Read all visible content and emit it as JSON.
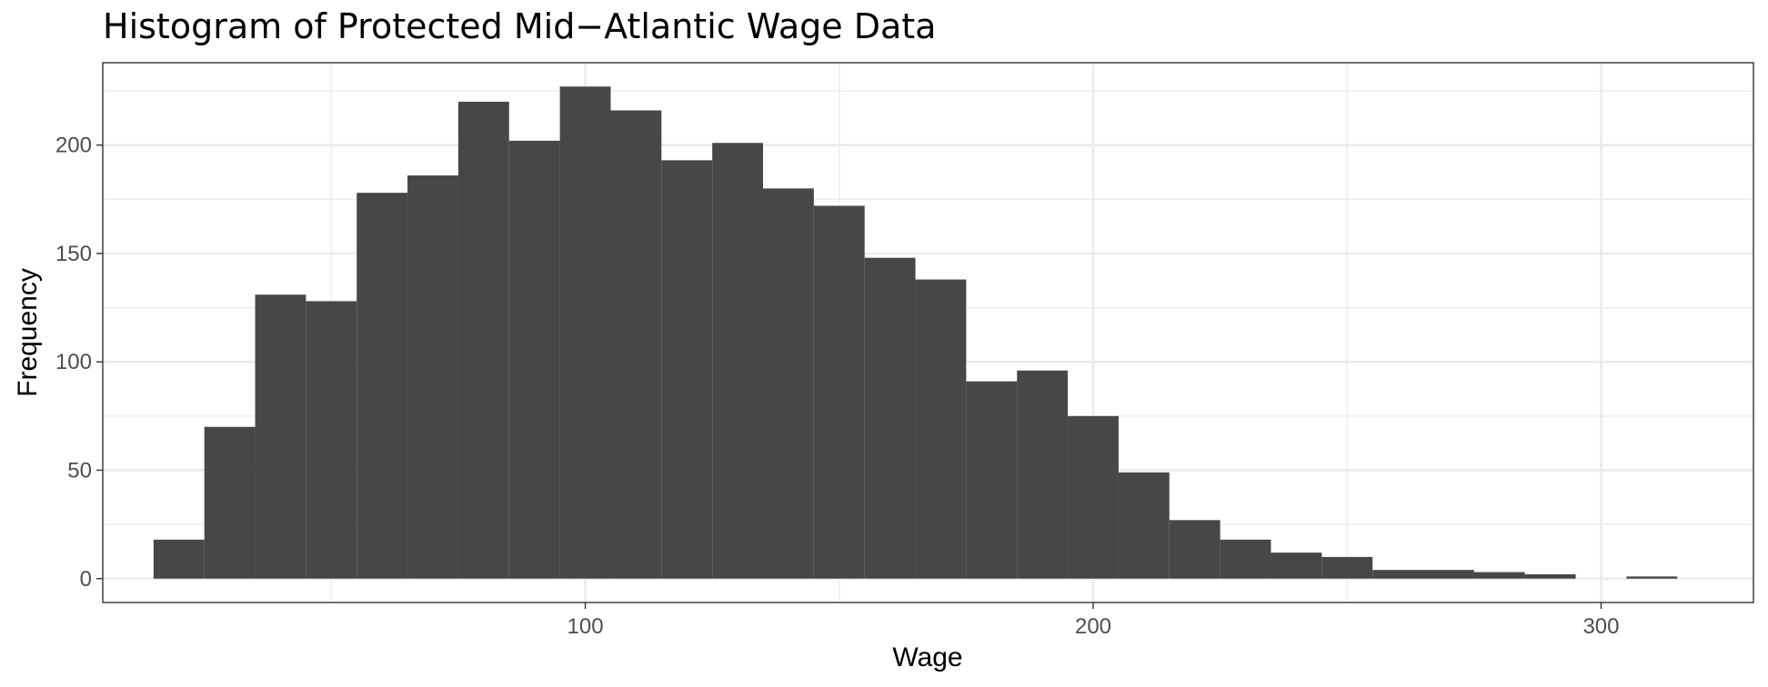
{
  "chart_data": {
    "type": "bar",
    "title": "Histogram of Protected Mid−Atlantic Wage Data",
    "xlabel": "Wage",
    "ylabel": "Frequency",
    "xlim": [
      5,
      330
    ],
    "ylim": [
      -11,
      238
    ],
    "x_major_ticks": [
      100,
      200,
      300
    ],
    "x_minor_ticks": [
      50,
      150,
      250
    ],
    "x_tick_labels": [
      "100",
      "200",
      "300"
    ],
    "y_major_ticks": [
      0,
      50,
      100,
      150,
      200
    ],
    "y_minor_ticks": [
      25,
      75,
      125,
      175,
      225
    ],
    "y_tick_labels": [
      "0",
      "50",
      "100",
      "150",
      "200"
    ],
    "bin_width": 10,
    "bins": [
      {
        "x0": 15,
        "x1": 25,
        "count": 18
      },
      {
        "x0": 25,
        "x1": 35,
        "count": 70
      },
      {
        "x0": 35,
        "x1": 45,
        "count": 131
      },
      {
        "x0": 45,
        "x1": 55,
        "count": 128
      },
      {
        "x0": 55,
        "x1": 65,
        "count": 178
      },
      {
        "x0": 65,
        "x1": 75,
        "count": 186
      },
      {
        "x0": 75,
        "x1": 85,
        "count": 220
      },
      {
        "x0": 85,
        "x1": 95,
        "count": 202
      },
      {
        "x0": 95,
        "x1": 105,
        "count": 227
      },
      {
        "x0": 105,
        "x1": 115,
        "count": 216
      },
      {
        "x0": 115,
        "x1": 125,
        "count": 193
      },
      {
        "x0": 125,
        "x1": 135,
        "count": 201
      },
      {
        "x0": 135,
        "x1": 145,
        "count": 180
      },
      {
        "x0": 145,
        "x1": 155,
        "count": 172
      },
      {
        "x0": 155,
        "x1": 165,
        "count": 148
      },
      {
        "x0": 165,
        "x1": 175,
        "count": 138
      },
      {
        "x0": 175,
        "x1": 185,
        "count": 91
      },
      {
        "x0": 185,
        "x1": 195,
        "count": 96
      },
      {
        "x0": 195,
        "x1": 205,
        "count": 75
      },
      {
        "x0": 205,
        "x1": 215,
        "count": 49
      },
      {
        "x0": 215,
        "x1": 225,
        "count": 27
      },
      {
        "x0": 225,
        "x1": 235,
        "count": 18
      },
      {
        "x0": 235,
        "x1": 245,
        "count": 12
      },
      {
        "x0": 245,
        "x1": 255,
        "count": 10
      },
      {
        "x0": 255,
        "x1": 265,
        "count": 4
      },
      {
        "x0": 265,
        "x1": 275,
        "count": 4
      },
      {
        "x0": 275,
        "x1": 285,
        "count": 3
      },
      {
        "x0": 285,
        "x1": 295,
        "count": 2
      },
      {
        "x0": 295,
        "x1": 305,
        "count": 0
      },
      {
        "x0": 305,
        "x1": 315,
        "count": 1
      }
    ],
    "bar_color": "#474747",
    "panel_background": "#ffffff",
    "grid": true,
    "legend": "none"
  }
}
